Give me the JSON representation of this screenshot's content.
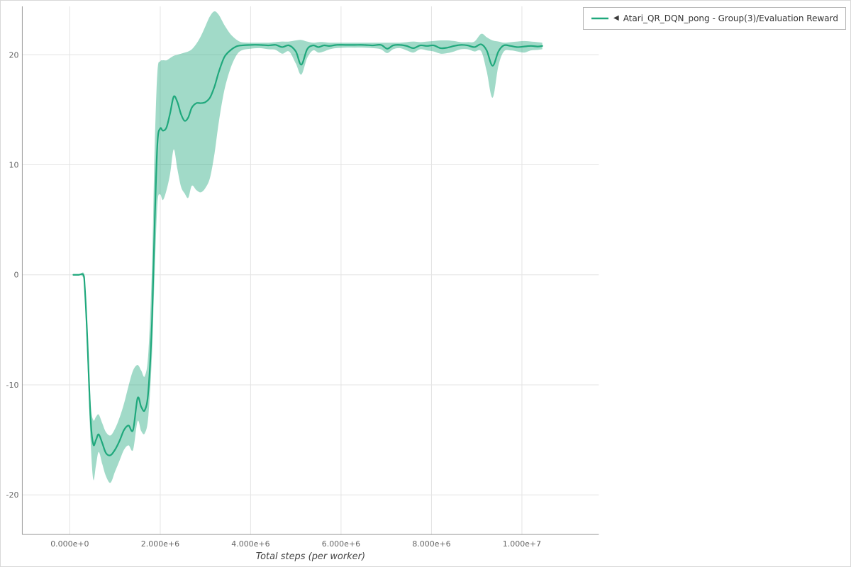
{
  "legend": {
    "marker": "◀",
    "label": "Atari_QR_DQN_pong - Group(3)/Evaluation Reward"
  },
  "colors": {
    "line": "#1fa87c",
    "band_fill": "#1fa87c",
    "grid": "#e4e4e4",
    "axis": "#9a9a9a",
    "tick_text": "#666666",
    "label_text": "#444444",
    "legend_border": "#b5b5b5"
  },
  "chart_data": {
    "type": "line",
    "title": "",
    "xlabel": "Total steps (per worker)",
    "ylabel": "",
    "x_unit": "steps (values in millions)",
    "xlim": [
      -1.05,
      11.7
    ],
    "ylim": [
      -23.6,
      24.4
    ],
    "x_ticks": [
      0,
      2,
      4,
      6,
      8,
      10
    ],
    "x_tick_labels": [
      "0.000e+0",
      "2.000e+6",
      "4.000e+6",
      "6.000e+6",
      "8.000e+6",
      "1.000e+7"
    ],
    "y_ticks": [
      -20,
      -10,
      0,
      10,
      20
    ],
    "y_tick_labels": [
      "-20",
      "-10",
      "0",
      "10",
      "20"
    ],
    "grid": true,
    "legend_position": "top-right",
    "series": [
      {
        "name": "Atari_QR_DQN_pong - Group(3)/Evaluation Reward",
        "marker": "◀",
        "color": "#1fa87c",
        "band_opacity": 0.42,
        "x": [
          0.08,
          0.2,
          0.3,
          0.33,
          0.38,
          0.46,
          0.52,
          0.58,
          0.64,
          0.72,
          0.8,
          0.9,
          1.0,
          1.1,
          1.2,
          1.3,
          1.4,
          1.5,
          1.58,
          1.66,
          1.74,
          1.82,
          1.88,
          1.94,
          2.0,
          2.06,
          2.14,
          2.22,
          2.3,
          2.38,
          2.46,
          2.54,
          2.62,
          2.7,
          2.8,
          2.9,
          3.0,
          3.1,
          3.2,
          3.3,
          3.42,
          3.55,
          3.68,
          3.8,
          4.0,
          4.2,
          4.4,
          4.55,
          4.7,
          4.85,
          5.0,
          5.12,
          5.25,
          5.38,
          5.5,
          5.62,
          5.75,
          5.9,
          6.1,
          6.3,
          6.5,
          6.7,
          6.88,
          7.02,
          7.15,
          7.3,
          7.45,
          7.6,
          7.75,
          7.9,
          8.05,
          8.2,
          8.35,
          8.5,
          8.65,
          8.8,
          8.95,
          9.1,
          9.22,
          9.35,
          9.48,
          9.6,
          9.75,
          9.9,
          10.05,
          10.2,
          10.35,
          10.45
        ],
        "y": [
          0,
          0,
          0,
          -1,
          -5,
          -13,
          -15.4,
          -15,
          -14.5,
          -15.3,
          -16.2,
          -16.4,
          -15.9,
          -15.1,
          -14.1,
          -13.7,
          -14.1,
          -11.2,
          -12,
          -12.3,
          -10.5,
          -4,
          5,
          12,
          13.3,
          13.1,
          13.4,
          14.7,
          16.2,
          15.7,
          14.6,
          14,
          14.3,
          15.2,
          15.6,
          15.6,
          15.7,
          16.1,
          17.1,
          18.5,
          19.8,
          20.4,
          20.75,
          20.85,
          20.9,
          20.9,
          20.85,
          20.9,
          20.7,
          20.85,
          20.3,
          19.1,
          20.5,
          20.85,
          20.7,
          20.85,
          20.8,
          20.9,
          20.9,
          20.9,
          20.9,
          20.85,
          20.9,
          20.55,
          20.85,
          20.9,
          20.8,
          20.6,
          20.85,
          20.8,
          20.85,
          20.6,
          20.65,
          20.8,
          20.9,
          20.85,
          20.7,
          20.95,
          20.4,
          19.0,
          20.3,
          20.85,
          20.8,
          20.7,
          20.75,
          20.8,
          20.75,
          20.8
        ],
        "band_lower": [
          0,
          0,
          -0.3,
          -1.8,
          -6.5,
          -15,
          -18.6,
          -17.3,
          -16.1,
          -17.2,
          -18.3,
          -18.9,
          -17.9,
          -16.9,
          -15.9,
          -15.5,
          -15.9,
          -13.3,
          -14.2,
          -14.4,
          -12.8,
          -7,
          0.5,
          6.5,
          7.3,
          6.8,
          7.7,
          9.2,
          11.4,
          9.6,
          8,
          7.4,
          7,
          8.1,
          7.7,
          7.5,
          7.9,
          8.8,
          11,
          14,
          16.8,
          18.7,
          19.9,
          20.4,
          20.55,
          20.6,
          20.5,
          20.45,
          20.1,
          20.3,
          19.2,
          18.2,
          19.7,
          20.4,
          20.2,
          20.3,
          20.5,
          20.6,
          20.65,
          20.65,
          20.65,
          20.6,
          20.5,
          20.15,
          20.5,
          20.6,
          20.4,
          20.2,
          20.5,
          20.4,
          20.3,
          20.1,
          20.15,
          20.3,
          20.5,
          20.5,
          20.3,
          20.3,
          18.5,
          16.1,
          19,
          20.3,
          20.4,
          20.3,
          20.2,
          20.4,
          20.45,
          20.5
        ],
        "band_upper": [
          0,
          0,
          0.2,
          -0.5,
          -3.8,
          -11.5,
          -13.2,
          -12.9,
          -12.7,
          -13.5,
          -14.3,
          -14.6,
          -14,
          -13,
          -11.7,
          -10.1,
          -8.7,
          -8.2,
          -8.7,
          -9.2,
          -7,
          1,
          12,
          18.5,
          19.4,
          19.5,
          19.5,
          19.7,
          19.9,
          20,
          20.1,
          20.2,
          20.3,
          20.5,
          21,
          21.7,
          22.6,
          23.5,
          23.95,
          23.6,
          22.7,
          21.9,
          21.4,
          21.15,
          21.1,
          21.1,
          21.1,
          21.15,
          21.2,
          21.2,
          21.3,
          21.35,
          21.2,
          21.1,
          21.15,
          21.15,
          21.1,
          21.1,
          21.1,
          21.1,
          21.1,
          21.1,
          21.1,
          21.1,
          21.1,
          21.1,
          21.15,
          21.2,
          21.15,
          21.2,
          21.25,
          21.3,
          21.3,
          21.25,
          21.15,
          21.15,
          21.2,
          21.9,
          21.6,
          21.3,
          21.2,
          21.1,
          21.15,
          21.2,
          21.25,
          21.2,
          21.15,
          21.1
        ]
      }
    ]
  }
}
